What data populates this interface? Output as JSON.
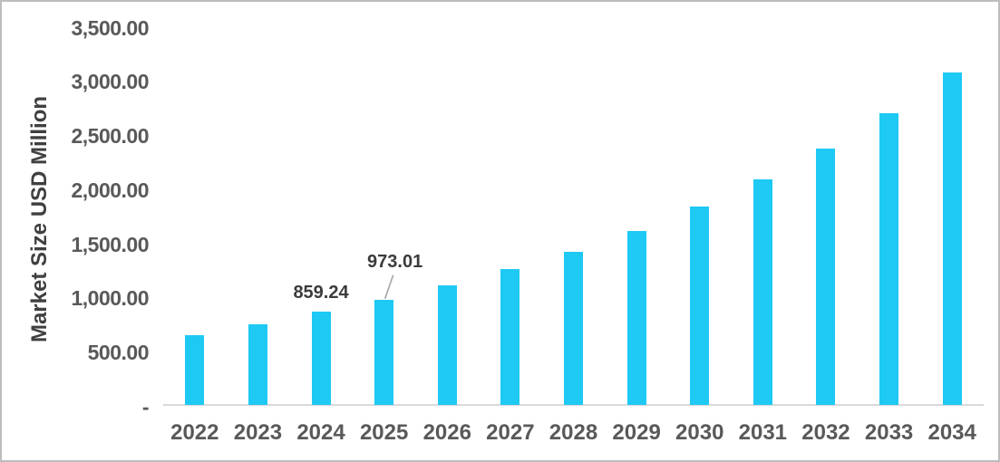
{
  "chart_data": {
    "type": "bar",
    "title": "",
    "xlabel": "",
    "ylabel": "Market Size USD Million",
    "categories": [
      "2022",
      "2023",
      "2024",
      "2025",
      "2026",
      "2027",
      "2028",
      "2029",
      "2030",
      "2031",
      "2032",
      "2033",
      "2034"
    ],
    "values": [
      645,
      748,
      859.24,
      973.01,
      1105,
      1255,
      1414,
      1604,
      1832,
      2086,
      2365,
      2696,
      3070
    ],
    "labeled_points": [
      {
        "category": "2024",
        "text": "859.24",
        "placement": "above",
        "leader": false
      },
      {
        "category": "2025",
        "text": "973.01",
        "placement": "offset-upper-right",
        "leader": true
      }
    ],
    "y_ticks": [
      {
        "label": "3,500.00",
        "value": 3500
      },
      {
        "label": "3,000.00",
        "value": 3000
      },
      {
        "label": "2,500.00",
        "value": 2500
      },
      {
        "label": "2,000.00",
        "value": 2000
      },
      {
        "label": "1,500.00",
        "value": 1500
      },
      {
        "label": "1,000.00",
        "value": 1000
      },
      {
        "label": "500.00",
        "value": 500
      },
      {
        "label": "-",
        "value": 0
      }
    ],
    "ylim": [
      0,
      3500
    ],
    "grid": false,
    "legend": "none",
    "colors": {
      "bar": "#1ec9f4",
      "tick_text": "#595959",
      "data_label_text": "#3b3b3b",
      "axis_title_text": "#404040",
      "baseline": "#d9d9d9",
      "leader_line": "#a6a6a6"
    }
  }
}
